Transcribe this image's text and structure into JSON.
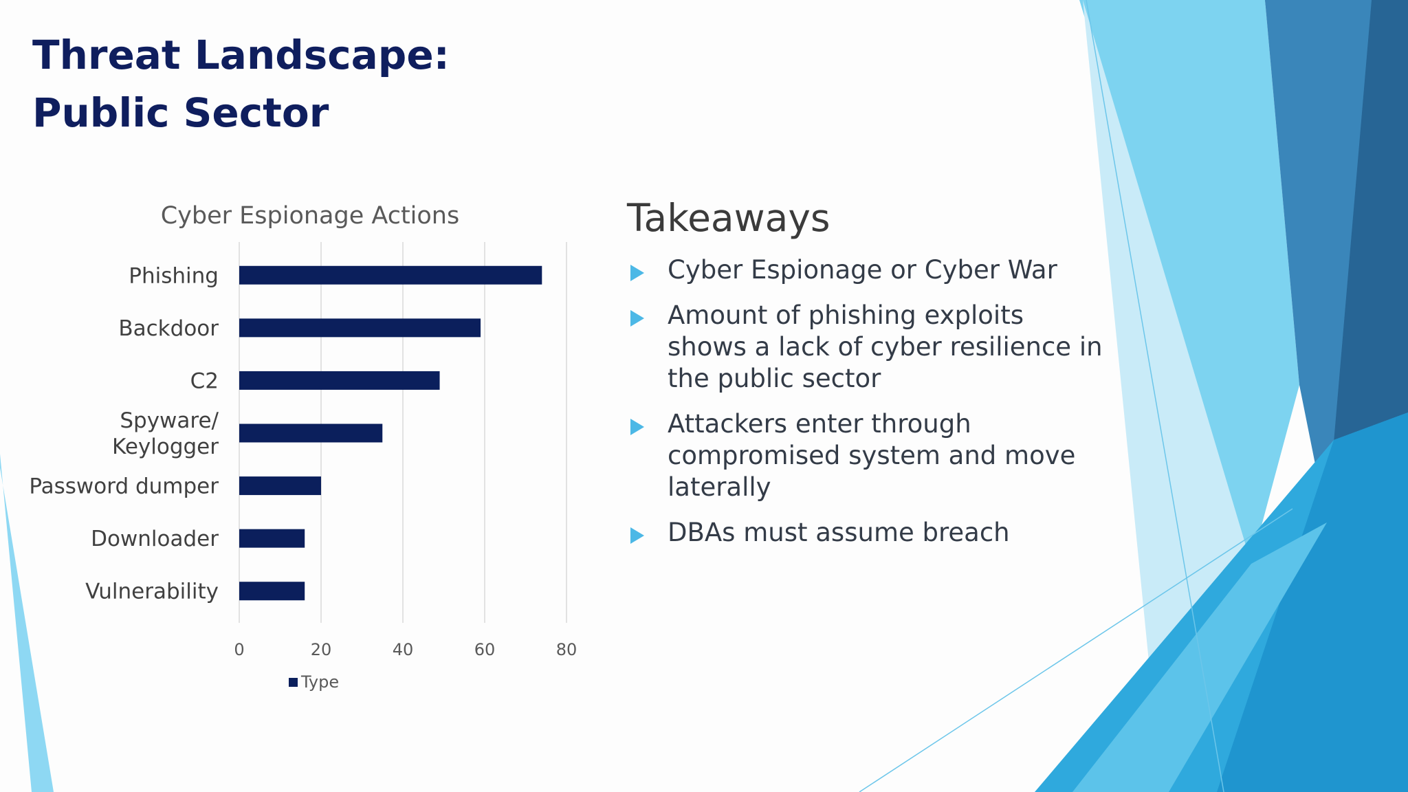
{
  "slide": {
    "title_lines": [
      "Threat Landscape:",
      "Public Sector"
    ]
  },
  "chart_data": {
    "type": "bar",
    "orientation": "horizontal",
    "title": "Cyber Espionage Actions",
    "categories": [
      "Phishing",
      "Backdoor",
      "C2",
      "Spyware/ Keylogger",
      "Password dumper",
      "Downloader",
      "Vulnerability"
    ],
    "category_label_lines": [
      [
        "Phishing"
      ],
      [
        "Backdoor"
      ],
      [
        "C2"
      ],
      [
        "Spyware/",
        "Keylogger"
      ],
      [
        "Password dumper"
      ],
      [
        "Downloader"
      ],
      [
        "Vulnerability"
      ]
    ],
    "series": [
      {
        "name": "Type",
        "values": [
          74,
          59,
          49,
          35,
          20,
          16,
          16
        ],
        "color": "#0b1f5c"
      }
    ],
    "xlim": [
      0,
      80
    ],
    "xticks": [
      0,
      20,
      40,
      60,
      80
    ],
    "grid": true,
    "legend_position": "bottom"
  },
  "takeaways": {
    "title": "Takeaways",
    "items": [
      "Cyber Espionage or Cyber War",
      "Amount of phishing exploits shows a lack of cyber resilience in the public sector",
      "Attackers enter through compromised system and move laterally",
      "DBAs must assume breach"
    ]
  },
  "colors": {
    "title": "#0f1e5e",
    "bar": "#0b1f5c",
    "bullet_accent": "#4cb8e6",
    "deco_light": "#7dd3f0",
    "deco_mid": "#2da9dd",
    "deco_dark": "#2e6b9e"
  }
}
